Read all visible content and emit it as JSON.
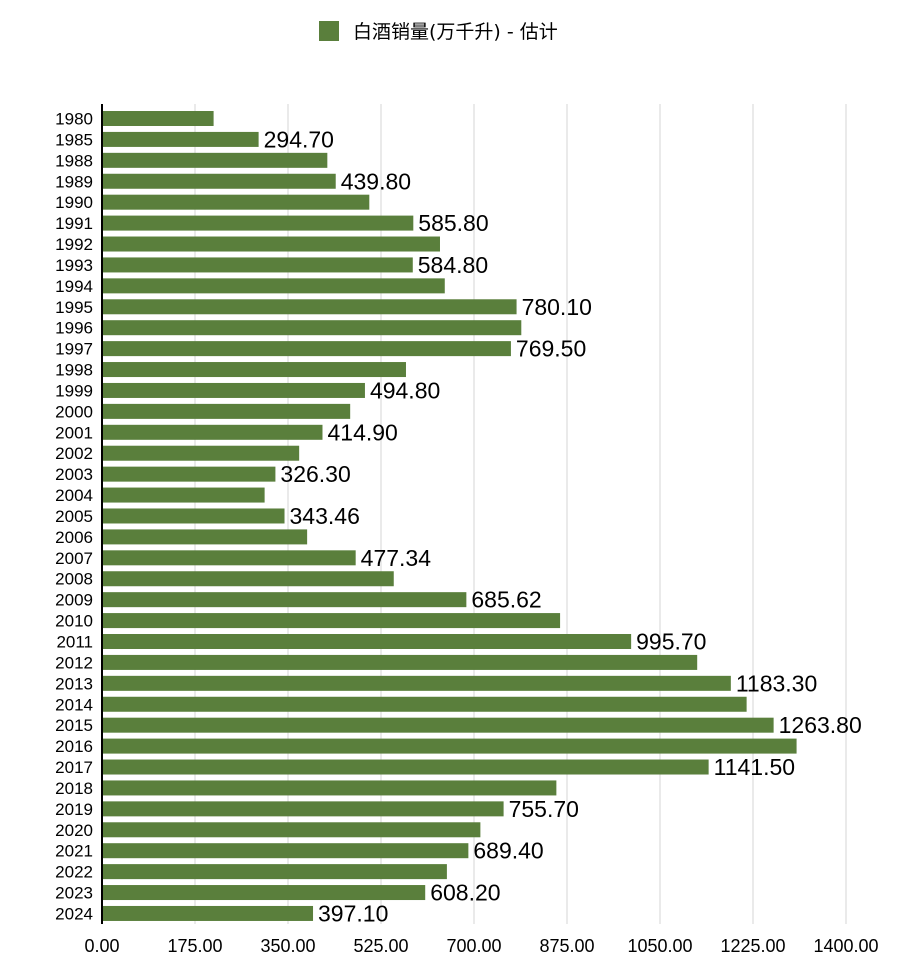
{
  "colors": {
    "bar": "#5a7f3c",
    "grid": "#d4d4d4",
    "axis": "#000000",
    "background": "#ffffff"
  },
  "chart_data": {
    "type": "bar",
    "orientation": "horizontal",
    "legend": {
      "position": "top-center",
      "entries": [
        "白酒销量(万千升) - 估计"
      ]
    },
    "series": [
      {
        "name": "白酒销量(万千升) - 估计",
        "values": [
          210,
          294.7,
          424,
          439.8,
          503,
          585.8,
          636,
          584.8,
          645,
          780.1,
          789,
          769.5,
          572,
          494.8,
          467,
          414.9,
          371,
          326.3,
          306,
          343.46,
          386,
          477.34,
          549,
          685.62,
          862,
          995.7,
          1120,
          1183.3,
          1213,
          1263.8,
          1307,
          1141.5,
          855,
          755.7,
          712,
          689.4,
          649,
          608.2,
          397.1
        ]
      }
    ],
    "categories": [
      "1980",
      "1985",
      "1988",
      "1989",
      "1990",
      "1991",
      "1992",
      "1993",
      "1994",
      "1995",
      "1996",
      "1997",
      "1998",
      "1999",
      "2000",
      "2001",
      "2002",
      "2003",
      "2004",
      "2005",
      "2006",
      "2007",
      "2008",
      "2009",
      "2010",
      "2011",
      "2012",
      "2013",
      "2014",
      "2015",
      "2016",
      "2017",
      "2018",
      "2019",
      "2020",
      "2021",
      "2022",
      "2023",
      "2024"
    ],
    "data_labels": [
      "",
      "294.70",
      "",
      "439.80",
      "",
      "585.80",
      "",
      "584.80",
      "",
      "780.10",
      "",
      "769.50",
      "",
      "494.80",
      "",
      "414.90",
      "",
      "326.30",
      "",
      "343.46",
      "",
      "477.34",
      "",
      "685.62",
      "",
      "995.70",
      "",
      "1183.30",
      "",
      "1263.80",
      "",
      "1141.50",
      "",
      "755.70",
      "",
      "689.40",
      "",
      "608.20",
      "397.10"
    ],
    "xlim": [
      0,
      1400
    ],
    "x_ticks": [
      0,
      175,
      350,
      525,
      700,
      875,
      1050,
      1225,
      1400
    ],
    "x_tick_labels": [
      "0.00",
      "175.00",
      "350.00",
      "525.00",
      "700.00",
      "875.00",
      "1050.00",
      "1225.00",
      "1400.00"
    ],
    "grid": true,
    "title": "",
    "xlabel": "",
    "ylabel": ""
  }
}
